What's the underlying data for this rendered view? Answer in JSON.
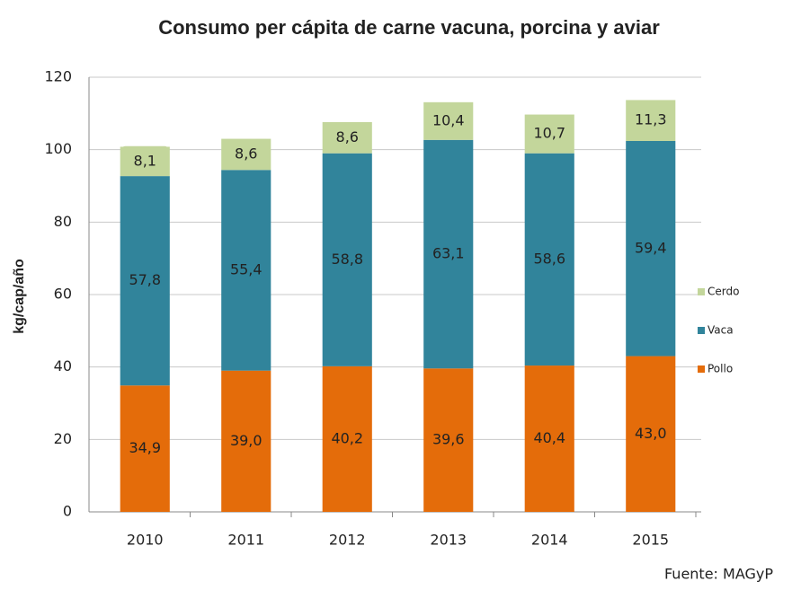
{
  "chart_data": {
    "type": "stacked_bar",
    "title": "Consumo per cápita de carne vacuna, porcina y aviar",
    "ylabel": "kg/cap/año",
    "source": "Fuente: MAGyP",
    "categories": [
      "2010",
      "2011",
      "2012",
      "2013",
      "2014",
      "2015"
    ],
    "series": [
      {
        "name": "Pollo",
        "color": "#e46c0a",
        "values": [
          34.9,
          39.0,
          40.2,
          39.6,
          40.4,
          43.0
        ],
        "value_labels": [
          "34,9",
          "39,0",
          "40,2",
          "39,6",
          "40,4",
          "43,0"
        ]
      },
      {
        "name": "Vaca",
        "color": "#31849b",
        "values": [
          57.8,
          55.4,
          58.8,
          63.1,
          58.6,
          59.4
        ],
        "value_labels": [
          "57,8",
          "55,4",
          "58,8",
          "63,1",
          "58,6",
          "59,4"
        ]
      },
      {
        "name": "Cerdo",
        "color": "#c3d69b",
        "values": [
          8.1,
          8.6,
          8.6,
          10.4,
          10.7,
          11.3
        ],
        "value_labels": [
          "8,1",
          "8,6",
          "8,6",
          "10,4",
          "10,7",
          "11,3"
        ]
      }
    ],
    "ylim": [
      0,
      120
    ],
    "yticks": [
      0,
      20,
      40,
      60,
      80,
      100,
      120
    ],
    "grid": true,
    "legend": "right"
  }
}
